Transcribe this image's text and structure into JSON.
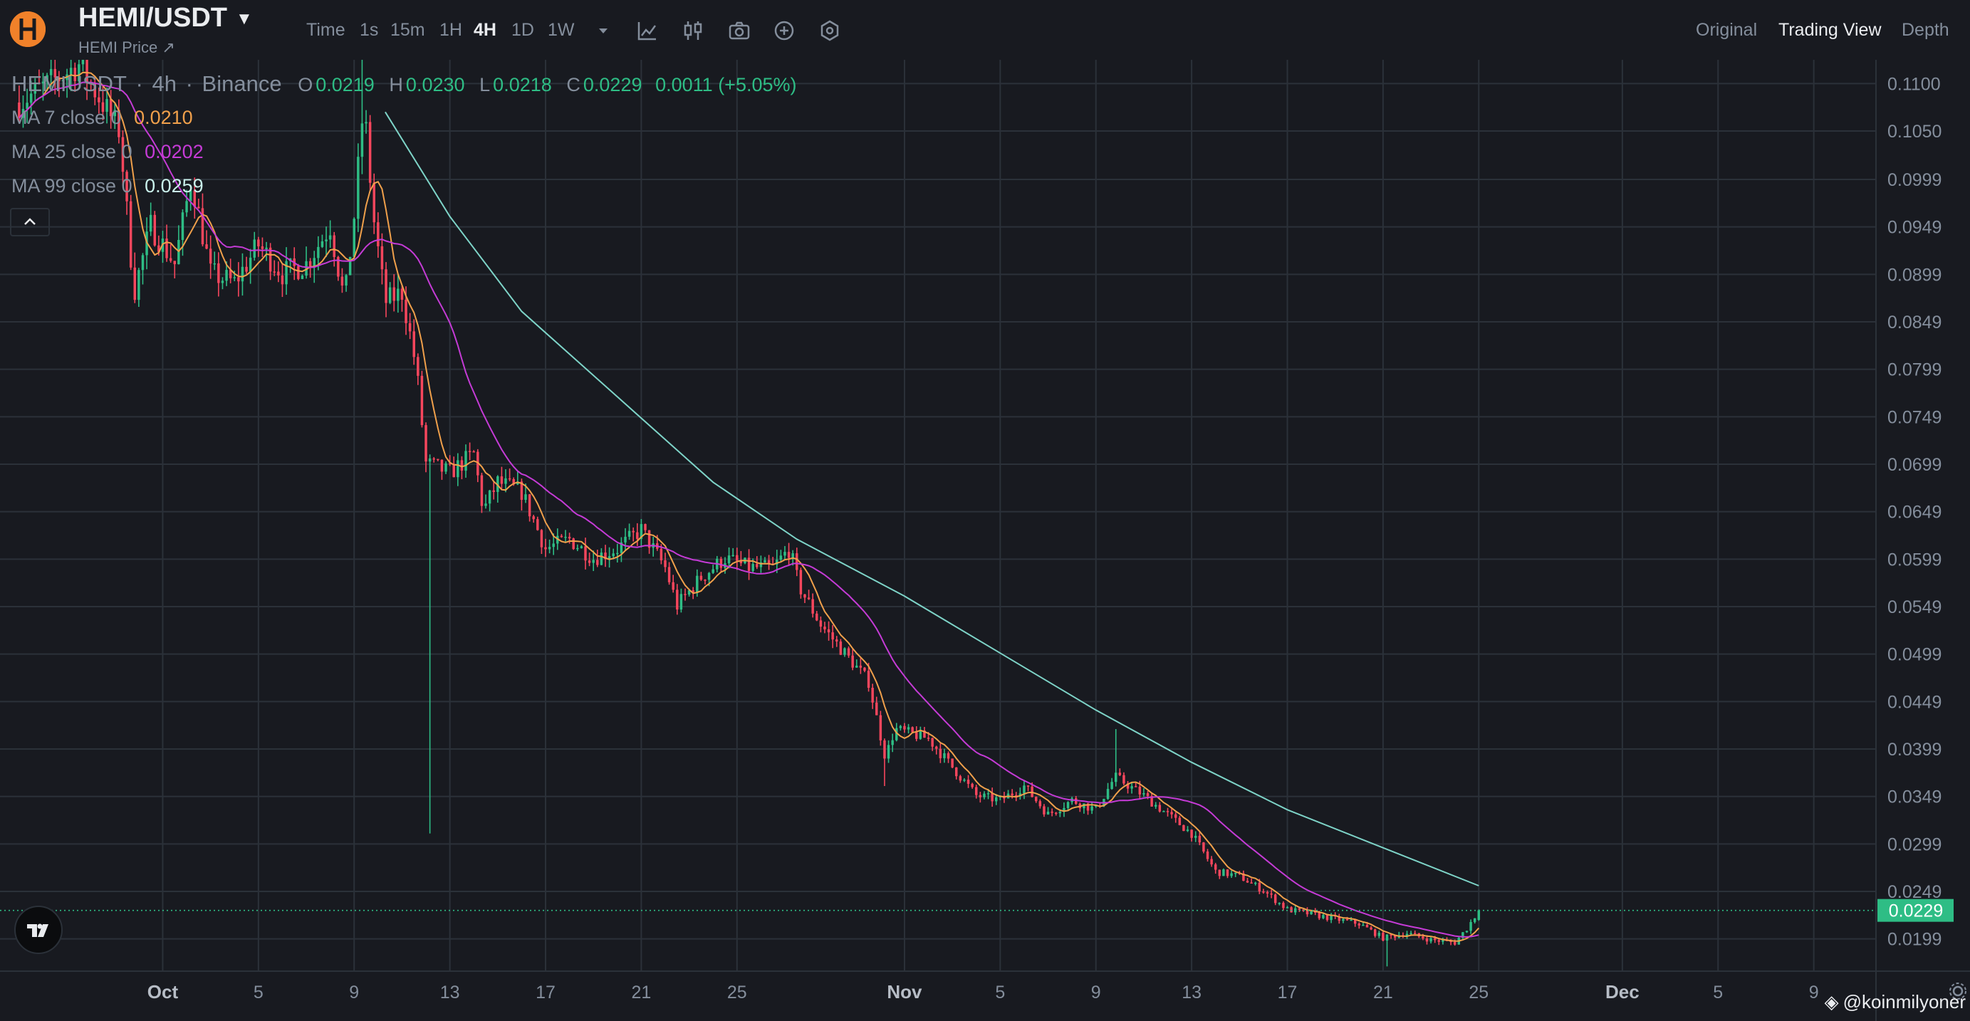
{
  "header": {
    "pair": "HEMI/USDT",
    "subtitle": "HEMI Price ↗",
    "timeframes": [
      "Time",
      "1s",
      "15m",
      "1H",
      "4H",
      "1D",
      "1W"
    ],
    "active_timeframe": "4H",
    "tools": [
      "dropdown-caret-icon",
      "line-chart-icon",
      "candle-settings-icon",
      "camera-icon",
      "add-indicator-icon",
      "settings-hex-icon"
    ],
    "views": [
      "Original",
      "Trading View",
      "Depth"
    ],
    "active_view": "Trading View"
  },
  "legend": {
    "symbol": "HEMIUSDT",
    "sep1": "·",
    "interval": "4h",
    "sep2": "·",
    "exchange": "Binance",
    "o_label": "O",
    "o_value": "0.0219",
    "h_label": "H",
    "h_value": "0.0230",
    "l_label": "L",
    "l_value": "0.0218",
    "c_label": "C",
    "c_value": "0.0229",
    "change": "0.0011 (+5.05%)",
    "ma7_label": "MA 7 close 0",
    "ma7_value": "0.0210",
    "ma25_label": "MA 25 close 0",
    "ma25_value": "0.0202",
    "ma99_label": "MA 99 close 0",
    "ma99_value": "0.0259"
  },
  "colors": {
    "up": "#2ebd85",
    "down": "#f6465d",
    "ma7": "#f0a04b",
    "ma25": "#c53bd6",
    "ma99": "#7ed4c8",
    "grid": "#2b3139",
    "text": "#848e9c",
    "price_tag": "#2ebd85"
  },
  "watermark": "@koinmilyoner",
  "chart_data": {
    "type": "candlestick",
    "title": "HEMIUSDT · 4h · Binance",
    "interval": "4h",
    "y_axis_side": "right",
    "ylim": [
      0.0165,
      0.1125
    ],
    "y_ticks": [
      "0.1100",
      "0.1050",
      "0.0999",
      "0.0949",
      "0.0899",
      "0.0849",
      "0.0799",
      "0.0749",
      "0.0699",
      "0.0649",
      "0.0599",
      "0.0549",
      "0.0499",
      "0.0449",
      "0.0399",
      "0.0349",
      "0.0299",
      "0.0249",
      "0.0199"
    ],
    "x_ticks": [
      "Oct",
      "5",
      "9",
      "13",
      "17",
      "21",
      "25",
      "Nov",
      "5",
      "9",
      "13",
      "17",
      "21",
      "25",
      "Dec",
      "5",
      "9"
    ],
    "x_tick_days": [
      0,
      4,
      8,
      12,
      16,
      20,
      24,
      31,
      35,
      39,
      43,
      47,
      51,
      55,
      61,
      65,
      69
    ],
    "x_range_days": [
      -6.8,
      71.6
    ],
    "last_price": 0.0229,
    "last_price_label": "0.0229",
    "grid": true,
    "price_path": [
      [
        -6.0,
        0.108
      ],
      [
        -3.5,
        0.112
      ],
      [
        -1.8,
        0.105
      ],
      [
        -1.2,
        0.088
      ],
      [
        -0.5,
        0.095
      ],
      [
        0.5,
        0.091
      ],
      [
        1.2,
        0.1
      ],
      [
        2.0,
        0.09
      ],
      [
        3.0,
        0.089
      ],
      [
        4.0,
        0.093
      ],
      [
        5.0,
        0.09
      ],
      [
        6.0,
        0.091
      ],
      [
        7.0,
        0.095
      ],
      [
        7.6,
        0.087
      ],
      [
        8.0,
        0.096
      ],
      [
        8.4,
        0.108
      ],
      [
        8.8,
        0.096
      ],
      [
        9.3,
        0.087
      ],
      [
        10.0,
        0.088
      ],
      [
        10.6,
        0.08
      ],
      [
        11.0,
        0.07
      ],
      [
        12.0,
        0.069
      ],
      [
        13.0,
        0.071
      ],
      [
        13.4,
        0.065
      ],
      [
        14.0,
        0.068
      ],
      [
        15.0,
        0.067
      ],
      [
        16.0,
        0.061
      ],
      [
        17.0,
        0.062
      ],
      [
        18.0,
        0.06
      ],
      [
        19.0,
        0.061
      ],
      [
        20.0,
        0.063
      ],
      [
        21.0,
        0.059
      ],
      [
        21.5,
        0.055
      ],
      [
        22.5,
        0.058
      ],
      [
        23.5,
        0.06
      ],
      [
        24.5,
        0.059
      ],
      [
        25.5,
        0.059
      ],
      [
        26.2,
        0.061
      ],
      [
        26.6,
        0.057
      ],
      [
        27.5,
        0.053
      ],
      [
        28.5,
        0.05
      ],
      [
        29.5,
        0.047
      ],
      [
        30.2,
        0.039
      ],
      [
        30.6,
        0.042
      ],
      [
        32.0,
        0.041
      ],
      [
        33.0,
        0.038
      ],
      [
        34.0,
        0.035
      ],
      [
        35.0,
        0.0345
      ],
      [
        36.0,
        0.036
      ],
      [
        37.0,
        0.033
      ],
      [
        38.0,
        0.0345
      ],
      [
        39.0,
        0.0335
      ],
      [
        39.8,
        0.037
      ],
      [
        40.4,
        0.036
      ],
      [
        41.0,
        0.035
      ],
      [
        42.0,
        0.033
      ],
      [
        43.0,
        0.031
      ],
      [
        44.0,
        0.027
      ],
      [
        45.0,
        0.0265
      ],
      [
        46.0,
        0.025
      ],
      [
        47.0,
        0.023
      ],
      [
        48.0,
        0.0225
      ],
      [
        49.0,
        0.022
      ],
      [
        50.0,
        0.0215
      ],
      [
        51.0,
        0.02
      ],
      [
        52.0,
        0.0205
      ],
      [
        53.0,
        0.0198
      ],
      [
        54.0,
        0.0195
      ],
      [
        54.5,
        0.021
      ],
      [
        55.0,
        0.0229
      ]
    ],
    "spikes": [
      {
        "day": 8.4,
        "high": 0.1125
      },
      {
        "day": 11.2,
        "low": 0.031
      },
      {
        "day": 30.2,
        "low": 0.036
      },
      {
        "day": 39.8,
        "high": 0.042
      },
      {
        "day": 51.1,
        "low": 0.017
      }
    ],
    "series": [
      {
        "name": "MA 7 close 0",
        "last": 0.021
      },
      {
        "name": "MA 25 close 0",
        "last": 0.0202
      },
      {
        "name": "MA 99 close 0",
        "last": 0.0259,
        "points": [
          [
            9.3,
            0.107
          ],
          [
            12.0,
            0.096
          ],
          [
            15.0,
            0.086
          ],
          [
            19.0,
            0.077
          ],
          [
            23.0,
            0.068
          ],
          [
            26.5,
            0.062
          ],
          [
            31.0,
            0.056
          ],
          [
            35.0,
            0.05
          ],
          [
            39.0,
            0.044
          ],
          [
            43.0,
            0.0385
          ],
          [
            47.0,
            0.0335
          ],
          [
            51.0,
            0.0295
          ],
          [
            55.0,
            0.0255
          ]
        ]
      }
    ]
  }
}
